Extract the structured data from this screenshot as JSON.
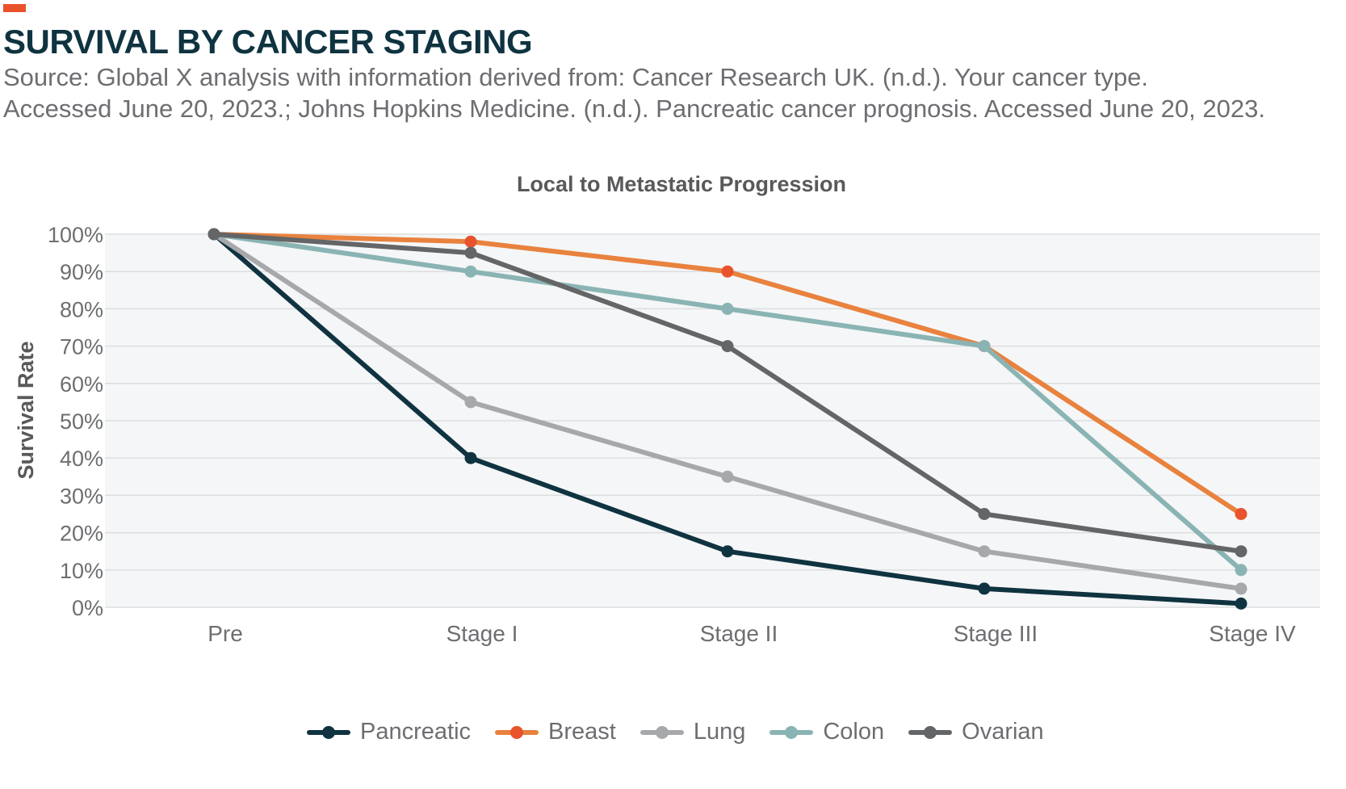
{
  "header": {
    "title": "SURVIVAL BY CANCER STAGING",
    "source_line1": "Source: Global X analysis with information derived from: Cancer Research UK. (n.d.). Your cancer type.",
    "source_line2": "Accessed June 20, 2023.; Johns Hopkins Medicine. (n.d.). Pancreatic cancer prognosis. Accessed June 20, 2023.",
    "accent_color": "#e8532b",
    "title_color": "#0f3340"
  },
  "chart_data": {
    "type": "line",
    "title": "Local to Metastatic Progression",
    "xlabel": "",
    "ylabel": "Survival Rate",
    "categories": [
      "Pre",
      "Stage I",
      "Stage II",
      "Stage III",
      "Stage IV"
    ],
    "ylim": [
      0,
      100
    ],
    "yticks": [
      0,
      10,
      20,
      30,
      40,
      50,
      60,
      70,
      80,
      90,
      100
    ],
    "ytick_labels": [
      "0%",
      "10%",
      "20%",
      "30%",
      "40%",
      "50%",
      "60%",
      "70%",
      "80%",
      "90%",
      "100%"
    ],
    "grid": true,
    "legend_position": "bottom",
    "series": [
      {
        "name": "Pancreatic",
        "color": "#0f3340",
        "values": [
          100,
          40,
          15,
          5,
          1
        ]
      },
      {
        "name": "Breast",
        "color": "#e8532b",
        "line_color": "#e8823e",
        "values": [
          100,
          98,
          90,
          70,
          25
        ]
      },
      {
        "name": "Lung",
        "color": "#a6a8ab",
        "values": [
          100,
          55,
          35,
          15,
          5
        ]
      },
      {
        "name": "Colon",
        "color": "#8ab4b4",
        "values": [
          100,
          90,
          80,
          70,
          10
        ]
      },
      {
        "name": "Ovarian",
        "color": "#646566",
        "values": [
          100,
          95,
          70,
          25,
          15
        ]
      }
    ]
  }
}
